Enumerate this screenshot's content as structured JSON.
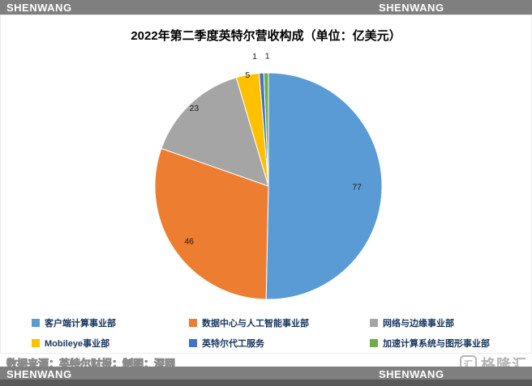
{
  "top_banner": {
    "brand_left": "SHENWANG",
    "brand_center": "SHENWANG"
  },
  "chart_data": {
    "type": "pie",
    "title": "2022年第二季度英特尔营收构成（单位：亿美元）",
    "legend_position": "bottom",
    "start_angle_deg": 0,
    "direction": "clockwise",
    "slices": [
      {
        "label": "客户端计算事业部",
        "value": 77,
        "color": "#5B9BD5"
      },
      {
        "label": "数据中心与人工智能事业部",
        "value": 46,
        "color": "#ED7D31"
      },
      {
        "label": "网络与边缘事业部",
        "value": 23,
        "color": "#A5A5A5"
      },
      {
        "label": "Mobileye事业部",
        "value": 5,
        "color": "#FFC000"
      },
      {
        "label": "英特尔代工服务",
        "value": 1,
        "color": "#4472C4"
      },
      {
        "label": "加速计算系统与图形事业部",
        "value": 1,
        "color": "#70AD47"
      }
    ]
  },
  "footer": {
    "source_note": "数据来源：英特尔财报；制图：深网",
    "logo_text": "格隆汇",
    "brand_left": "SHENWANG",
    "brand_center": "SHENWANG"
  }
}
